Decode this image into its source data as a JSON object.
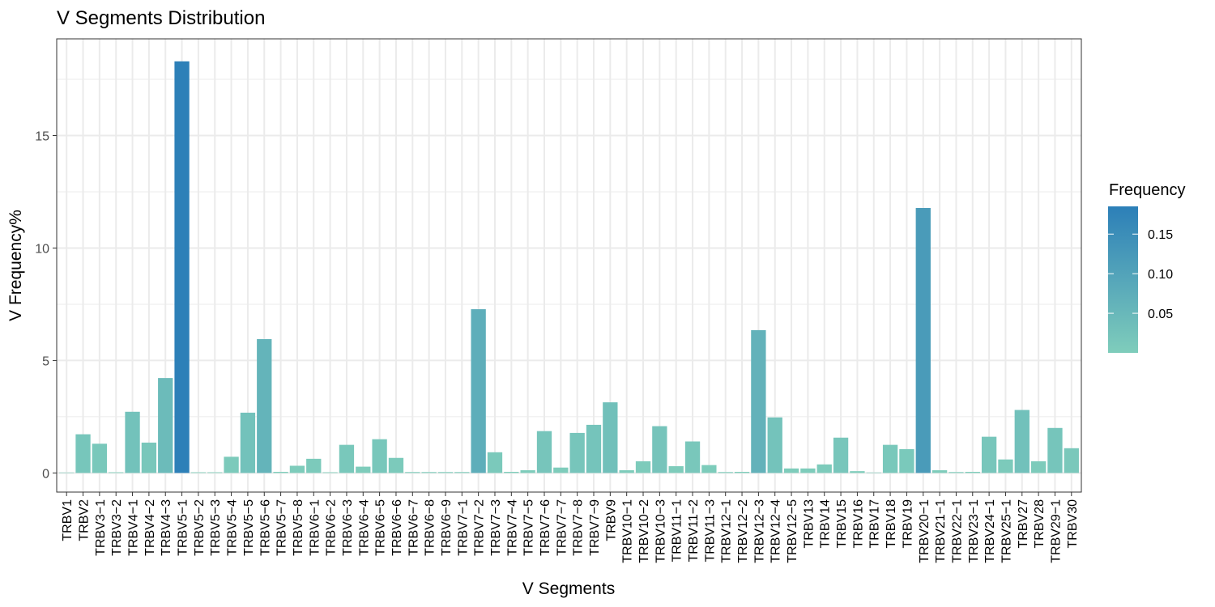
{
  "chart_data": {
    "type": "bar",
    "title": "V Segments Distribution",
    "xlabel": "V Segments",
    "ylabel": "V Frequency%",
    "ylim": [
      -0.85,
      19.3
    ],
    "yticks": [
      0,
      5,
      10,
      15
    ],
    "grid": true,
    "legend": {
      "title": "Frequency",
      "placement": "right",
      "type": "gradient",
      "range": [
        0.0,
        0.185
      ],
      "ticks": [
        0.15,
        0.1,
        0.05
      ],
      "tick_labels": [
        "0.15",
        "0.10",
        "0.05"
      ],
      "colors": {
        "low": "#7fcdbb",
        "high": "#2c7fb8"
      }
    },
    "categories": [
      "TRBV1",
      "TRBV2",
      "TRBV3−1",
      "TRBV3−2",
      "TRBV4−1",
      "TRBV4−2",
      "TRBV4−3",
      "TRBV5−1",
      "TRBV5−2",
      "TRBV5−3",
      "TRBV5−4",
      "TRBV5−5",
      "TRBV5−6",
      "TRBV5−7",
      "TRBV5−8",
      "TRBV6−1",
      "TRBV6−2",
      "TRBV6−3",
      "TRBV6−4",
      "TRBV6−5",
      "TRBV6−6",
      "TRBV6−7",
      "TRBV6−8",
      "TRBV6−9",
      "TRBV7−1",
      "TRBV7−2",
      "TRBV7−3",
      "TRBV7−4",
      "TRBV7−5",
      "TRBV7−6",
      "TRBV7−7",
      "TRBV7−8",
      "TRBV7−9",
      "TRBV9",
      "TRBV10−1",
      "TRBV10−2",
      "TRBV10−3",
      "TRBV11−1",
      "TRBV11−2",
      "TRBV11−3",
      "TRBV12−1",
      "TRBV12−2",
      "TRBV12−3",
      "TRBV12−4",
      "TRBV12−5",
      "TRBV13",
      "TRBV14",
      "TRBV15",
      "TRBV16",
      "TRBV17",
      "TRBV18",
      "TRBV19",
      "TRBV20−1",
      "TRBV21−1",
      "TRBV22−1",
      "TRBV23−1",
      "TRBV24−1",
      "TRBV25−1",
      "TRBV27",
      "TRBV28",
      "TRBV29−1",
      "TRBV30"
    ],
    "values": [
      0.02,
      1.72,
      1.3,
      0.03,
      2.72,
      1.35,
      4.22,
      18.3,
      0.03,
      0.03,
      0.72,
      2.68,
      5.95,
      0.05,
      0.32,
      0.63,
      0.03,
      1.25,
      0.28,
      1.5,
      0.67,
      0.04,
      0.04,
      0.04,
      0.04,
      7.28,
      0.92,
      0.05,
      0.12,
      1.86,
      0.24,
      1.78,
      2.14,
      3.14,
      0.12,
      0.52,
      2.08,
      0.3,
      1.4,
      0.35,
      0.04,
      0.05,
      6.35,
      2.47,
      0.2,
      0.2,
      0.38,
      1.57,
      0.08,
      0.02,
      1.25,
      1.06,
      11.78,
      0.12,
      0.04,
      0.05,
      1.61,
      0.6,
      2.8,
      0.52,
      2.0,
      1.1
    ]
  }
}
